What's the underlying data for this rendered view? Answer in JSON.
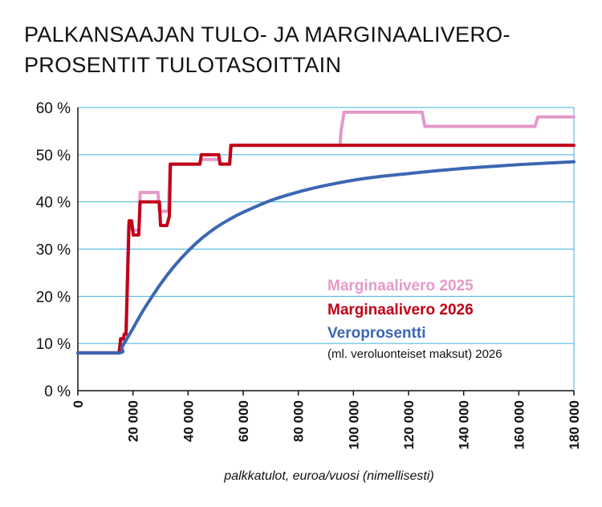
{
  "chart_data": {
    "type": "line",
    "title_lines": [
      "PALKANSAAJAN TULO- JA MARGINAALIVERO-",
      "PROSENTIT TULOTASOITTAIN"
    ],
    "xlabel": "palkkatulot, euroa/vuosi (nimellisesti)",
    "ylabel": "",
    "xlim": [
      0,
      180000
    ],
    "ylim": [
      0,
      60
    ],
    "grid": true,
    "x_tick_values": [
      0,
      20000,
      40000,
      60000,
      80000,
      100000,
      120000,
      140000,
      160000,
      180000
    ],
    "x_tick_labels": [
      "0",
      "20 000",
      "40 000",
      "60 000",
      "80 000",
      "100 000",
      "120 000",
      "140 000",
      "160 000",
      "180 000"
    ],
    "y_tick_values": [
      0,
      10,
      20,
      30,
      40,
      50,
      60
    ],
    "y_tick_labels": [
      "0 %",
      "10 %",
      "20 %",
      "30 %",
      "40 %",
      "50 %",
      "60 %"
    ],
    "legend_position": "inside-lower-right",
    "legend_note": "(ml. veroluonteiset maksut) 2026",
    "series": [
      {
        "name": "Marginaalivero 2025",
        "color": "#e49ac8",
        "x": [
          0,
          14800,
          15400,
          16300,
          16800,
          17400,
          18400,
          19300,
          19800,
          22100,
          22600,
          24600,
          25100,
          29100,
          29500,
          31300,
          31800,
          32900,
          33400,
          34300,
          44100,
          44600,
          51400,
          51800,
          54900,
          55400,
          95100,
          95500,
          96600,
          98000,
          124900,
          125900,
          165900,
          166900,
          180000
        ],
        "values": [
          8,
          8,
          10,
          10,
          12,
          12,
          35,
          35,
          34,
          34,
          42,
          42,
          42,
          42,
          38,
          38,
          38,
          38,
          48,
          48,
          48,
          49,
          49,
          48,
          48,
          52,
          52,
          55,
          59,
          59,
          59,
          56,
          56,
          58,
          58
        ]
      },
      {
        "name": "Marginaalivero 2026",
        "color": "#c00017",
        "x": [
          0,
          15000,
          15500,
          16500,
          16900,
          17500,
          18600,
          19500,
          20100,
          22100,
          22600,
          25100,
          25600,
          29600,
          30000,
          31800,
          32300,
          33200,
          33600,
          34600,
          44300,
          44800,
          51100,
          51600,
          55100,
          55600,
          180000
        ],
        "values": [
          8,
          8,
          11,
          11,
          12,
          12,
          36,
          36,
          33,
          33,
          40,
          40,
          40,
          40,
          35,
          35,
          35,
          37,
          48,
          48,
          48,
          50,
          50,
          48,
          48,
          52,
          52
        ]
      },
      {
        "name": "Veroprosentti",
        "color": "#3c67b2",
        "x": [
          0,
          15000,
          16000,
          18000,
          20000,
          22500,
          25000,
          30000,
          35000,
          40000,
          45000,
          50000,
          55000,
          60000,
          70000,
          80000,
          90000,
          100000,
          110000,
          120000,
          130000,
          140000,
          150000,
          160000,
          170000,
          180000
        ],
        "values": [
          8,
          8,
          9.2,
          11.2,
          13.2,
          15.8,
          18.2,
          22.6,
          26.4,
          29.6,
          32.3,
          34.5,
          36.3,
          37.8,
          40.3,
          42.1,
          43.5,
          44.6,
          45.4,
          46.0,
          46.6,
          47.1,
          47.5,
          47.9,
          48.2,
          48.5
        ]
      }
    ]
  }
}
